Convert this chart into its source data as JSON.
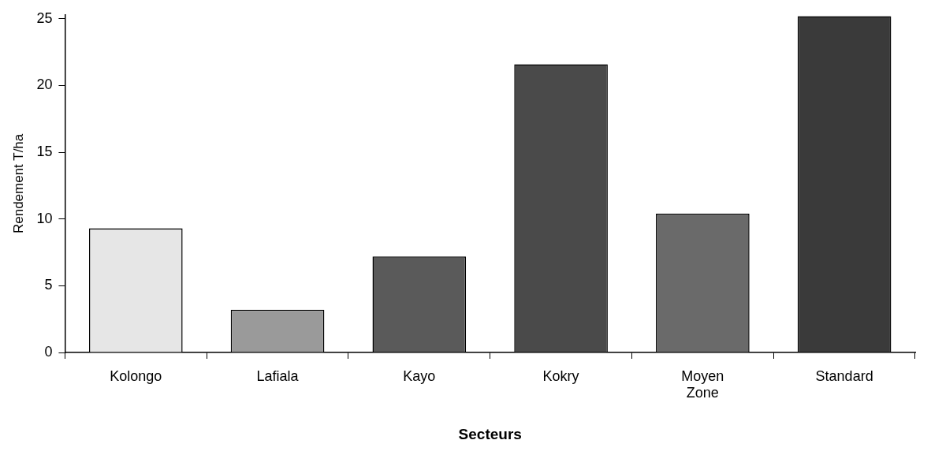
{
  "chart_data": {
    "type": "bar",
    "xlabel": "Secteurs",
    "ylabel": "Rendement T/ha",
    "categories": [
      "Kolongo",
      "Lafiala",
      "Kayo",
      "Kokry",
      "Moyen Zone",
      "Standard"
    ],
    "values": [
      9.3,
      3.2,
      7.2,
      21.6,
      10.4,
      25.2
    ],
    "colors": [
      "#e6e6e6",
      "#9a9a9a",
      "#5a5a5a",
      "#4a4a4a",
      "#6a6a6a",
      "#3a3a3a"
    ],
    "ylim": [
      0,
      25.3
    ],
    "yticks": [
      0,
      5,
      10,
      15,
      20,
      25
    ],
    "grid": false,
    "legend": false
  }
}
